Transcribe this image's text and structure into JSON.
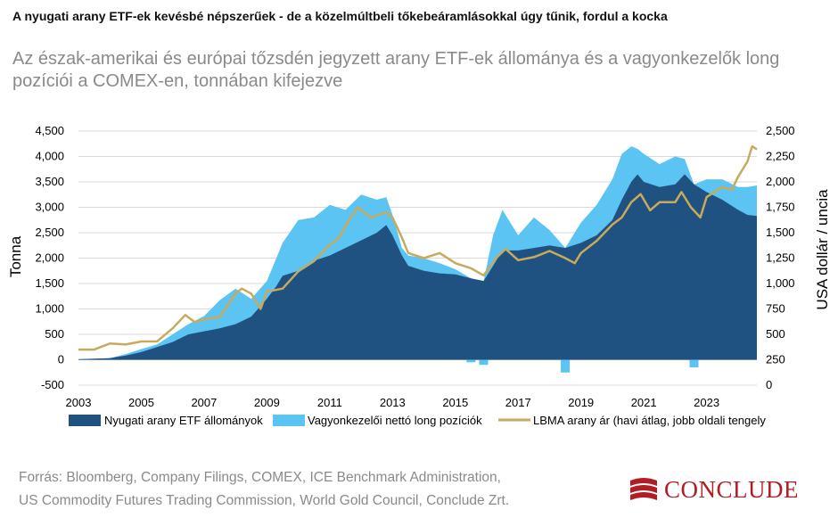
{
  "header": {
    "title": "A nyugati arany ETF-ek kevésbé népszerűek - de a közelmúltbeli tőkebeáramlásokkal úgy tűnik, fordul a kocka",
    "subtitle": "Az észak-amerikai és európai tőzsdén jegyzett arany ETF-ek állománya és a vagyonkezelők long pozíciói a COMEX-en, tonnában kifejezve"
  },
  "footer": {
    "source_line1": "Forrás: Bloomberg, Company Filings, COMEX, ICE Benchmark Administration,",
    "source_line2": "US Commodity Futures Trading Commission, World Gold Council, Conclude Zrt.",
    "logo_text": "CONCLUDE"
  },
  "colors": {
    "etf": "#1f5280",
    "net_long": "#5bc4f2",
    "gold_price": "#c7aa5c",
    "grid": "#d9d9d9",
    "logo": "#b01e24"
  },
  "chart_data": {
    "type": "area",
    "xlabel": "",
    "ylabel_left": "Tonna",
    "ylabel_right": "USA dollár / uncia",
    "ylim_left": [
      -500,
      4500
    ],
    "ylim_right": [
      0,
      2500
    ],
    "xlim": [
      2003,
      2024.6
    ],
    "yticks_left": [
      "4,500",
      "4,000",
      "3,500",
      "3,000",
      "2,500",
      "2,000",
      "1,500",
      "1,000",
      "500",
      "0",
      "-500"
    ],
    "yticks_right": [
      "2,500",
      "2,250",
      "2,000",
      "1,750",
      "1,500",
      "1,250",
      "1,000",
      "750",
      "500",
      "250",
      "0"
    ],
    "xticks": [
      "2003",
      "2005",
      "2007",
      "2009",
      "2011",
      "2013",
      "2015",
      "2017",
      "2019",
      "2021",
      "2023"
    ],
    "grid": "horizontal",
    "legend_position": "bottom",
    "legend": [
      "Nyugati arany ETF állományok",
      "Vagyonkezelői nettó long pozíciók",
      "LBMA arany ár (havi átlag, jobb oldali tengely"
    ],
    "series": [
      {
        "name": "Nyugati arany ETF állományok",
        "axis": "left",
        "x": [
          2003.0,
          2004.0,
          2004.5,
          2005.0,
          2005.5,
          2006.0,
          2006.5,
          2007.0,
          2007.5,
          2008.0,
          2008.5,
          2009.0,
          2009.3,
          2009.5,
          2010.0,
          2010.5,
          2011.0,
          2011.5,
          2012.0,
          2012.5,
          2012.8,
          2013.0,
          2013.3,
          2013.5,
          2014.0,
          2014.5,
          2015.0,
          2015.5,
          2015.9,
          2016.2,
          2016.5,
          2017.0,
          2017.5,
          2018.0,
          2018.5,
          2019.0,
          2019.5,
          2020.0,
          2020.3,
          2020.6,
          2020.8,
          2021.0,
          2021.5,
          2022.0,
          2022.3,
          2022.6,
          2023.0,
          2023.5,
          2024.0,
          2024.3,
          2024.6
        ],
        "y": [
          10,
          30,
          80,
          150,
          250,
          350,
          500,
          560,
          620,
          700,
          850,
          1200,
          1450,
          1650,
          1750,
          1950,
          2050,
          2200,
          2350,
          2500,
          2650,
          2450,
          2050,
          1850,
          1750,
          1700,
          1680,
          1600,
          1550,
          1850,
          2150,
          2150,
          2200,
          2250,
          2200,
          2300,
          2450,
          2750,
          3150,
          3500,
          3650,
          3500,
          3400,
          3450,
          3650,
          3450,
          3300,
          3150,
          2950,
          2850,
          2830
        ]
      },
      {
        "name": "Vagyonkezelői nettó long pozíciók",
        "axis": "left",
        "x": [
          2003.0,
          2004.0,
          2004.5,
          2005.0,
          2005.5,
          2006.0,
          2006.5,
          2007.0,
          2007.5,
          2008.0,
          2008.5,
          2009.0,
          2009.3,
          2009.5,
          2010.0,
          2010.5,
          2011.0,
          2011.5,
          2012.0,
          2012.5,
          2012.8,
          2013.0,
          2013.3,
          2013.5,
          2014.0,
          2014.5,
          2015.0,
          2015.5,
          2015.9,
          2016.2,
          2016.5,
          2017.0,
          2017.5,
          2018.0,
          2018.5,
          2019.0,
          2019.5,
          2020.0,
          2020.3,
          2020.6,
          2020.8,
          2021.0,
          2021.5,
          2022.0,
          2022.3,
          2022.6,
          2023.0,
          2023.5,
          2024.0,
          2024.3,
          2024.6
        ],
        "y": [
          0,
          0,
          30,
          60,
          50,
          150,
          200,
          300,
          550,
          700,
          350,
          350,
          550,
          650,
          1000,
          850,
          1000,
          750,
          900,
          650,
          550,
          400,
          150,
          200,
          250,
          200,
          100,
          -50,
          -100,
          600,
          800,
          300,
          600,
          300,
          -250,
          400,
          600,
          800,
          900,
          700,
          500,
          550,
          450,
          550,
          300,
          -150,
          250,
          400,
          450,
          550,
          600
        ]
      },
      {
        "name": "LBMA arany ár (havi átlag, jobb oldali tengely",
        "axis": "right",
        "x": [
          2003.0,
          2003.5,
          2004.0,
          2004.5,
          2005.0,
          2005.5,
          2006.0,
          2006.4,
          2006.7,
          2007.0,
          2007.5,
          2008.0,
          2008.2,
          2008.5,
          2008.8,
          2009.0,
          2009.5,
          2010.0,
          2010.5,
          2011.0,
          2011.3,
          2011.6,
          2011.9,
          2012.3,
          2012.8,
          2013.0,
          2013.3,
          2013.5,
          2014.0,
          2014.5,
          2015.0,
          2015.5,
          2015.9,
          2016.3,
          2016.6,
          2017.0,
          2017.5,
          2018.0,
          2018.5,
          2018.8,
          2019.0,
          2019.5,
          2020.0,
          2020.3,
          2020.6,
          2020.9,
          2021.2,
          2021.5,
          2022.0,
          2022.2,
          2022.5,
          2022.8,
          2023.0,
          2023.5,
          2023.8,
          2024.0,
          2024.3,
          2024.45,
          2024.6
        ],
        "y": [
          350,
          350,
          410,
          400,
          430,
          430,
          560,
          690,
          620,
          650,
          670,
          900,
          950,
          900,
          750,
          920,
          950,
          1120,
          1220,
          1380,
          1450,
          1620,
          1750,
          1650,
          1700,
          1650,
          1450,
          1300,
          1250,
          1300,
          1200,
          1150,
          1080,
          1250,
          1340,
          1230,
          1260,
          1320,
          1250,
          1200,
          1300,
          1420,
          1580,
          1650,
          1800,
          1880,
          1720,
          1800,
          1800,
          1900,
          1750,
          1650,
          1850,
          1950,
          1920,
          2050,
          2200,
          2350,
          2320
        ]
      }
    ]
  }
}
